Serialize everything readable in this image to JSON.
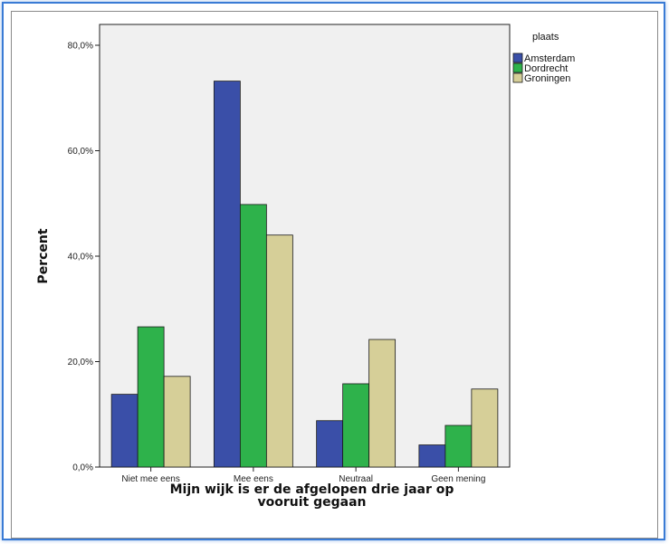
{
  "chart_data": {
    "type": "bar",
    "xlabel": [
      "Mijn wijk is er de afgelopen drie jaar op",
      "vooruit gegaan"
    ],
    "ylabel": "Percent",
    "ylim": [
      0,
      80
    ],
    "yticks": [
      "0,0%",
      "20,0%",
      "40,0%",
      "60,0%",
      "80,0%"
    ],
    "grid": false,
    "legend": {
      "title": "plaats",
      "placement": "top-right"
    },
    "categories": [
      "Niet mee eens",
      "Mee eens",
      "Neutraal",
      "Geen mening"
    ],
    "series": [
      {
        "name": "Amsterdam",
        "color": "#3a4fa8",
        "values": [
          13.8,
          73.2,
          8.8,
          4.2
        ]
      },
      {
        "name": "Dordrecht",
        "color": "#2eb24b",
        "values": [
          26.6,
          49.8,
          15.8,
          7.9
        ]
      },
      {
        "name": "Groningen",
        "color": "#d6cf98",
        "values": [
          17.2,
          44.0,
          24.2,
          14.8
        ]
      }
    ],
    "plot_background": "#f0f0f0"
  }
}
